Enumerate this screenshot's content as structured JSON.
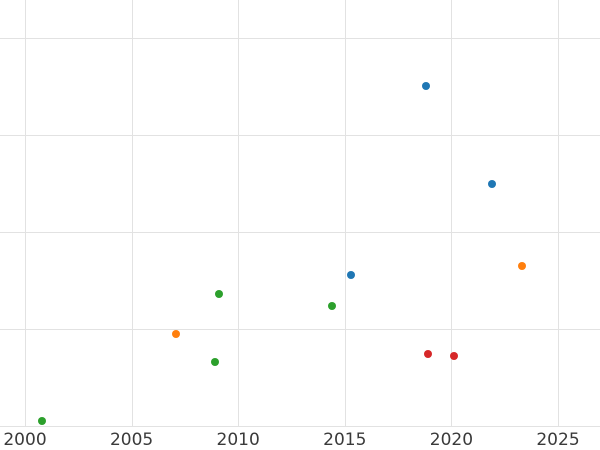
{
  "chart_data": {
    "type": "scatter",
    "title": "",
    "xlabel": "",
    "ylabel": "",
    "x_ticks": [
      2000,
      2005,
      2010,
      2015,
      2020,
      2025
    ],
    "y_gridlines": [
      0,
      1,
      2,
      3,
      4
    ],
    "xlim": [
      1998.8,
      2027.0
    ],
    "ylim": [
      -0.25,
      4.39
    ],
    "grid": true,
    "legend_position": "none",
    "background_color": "#ffffff",
    "gridline_color": "#e2e2e2",
    "tick_label_color": "#3a3a3a",
    "series": [
      {
        "name": "blue",
        "color": "#1f77b4",
        "points": [
          {
            "x": 2015.3,
            "y": 1.56
          },
          {
            "x": 2018.8,
            "y": 3.51
          },
          {
            "x": 2021.9,
            "y": 2.49
          }
        ]
      },
      {
        "name": "orange",
        "color": "#ff7f0e",
        "points": [
          {
            "x": 2007.1,
            "y": 0.95
          },
          {
            "x": 2023.3,
            "y": 1.65
          }
        ]
      },
      {
        "name": "green",
        "color": "#2ca02c",
        "points": [
          {
            "x": 2000.8,
            "y": 0.05
          },
          {
            "x": 2008.9,
            "y": 0.66
          },
          {
            "x": 2009.1,
            "y": 1.36
          },
          {
            "x": 2014.4,
            "y": 1.24
          }
        ]
      },
      {
        "name": "red",
        "color": "#d62728",
        "points": [
          {
            "x": 2018.9,
            "y": 0.74
          },
          {
            "x": 2020.1,
            "y": 0.72
          }
        ]
      }
    ]
  }
}
